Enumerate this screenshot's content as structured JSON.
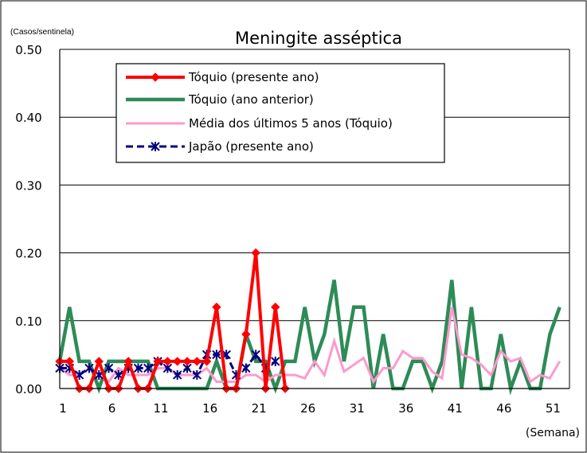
{
  "chart_data": {
    "type": "line",
    "title": "Meningite asséptica",
    "ylabel": "(Casos/sentinela)",
    "xlabel": "(Semana)",
    "ylim": [
      0,
      0.5
    ],
    "yticks": [
      "0.00",
      "0.10",
      "0.20",
      "0.30",
      "0.40",
      "0.50"
    ],
    "xlim": [
      1,
      53
    ],
    "xticks": [
      "1",
      "6",
      "11",
      "16",
      "21",
      "26",
      "31",
      "36",
      "41",
      "46",
      "51"
    ],
    "grid": true,
    "legend_position": "top-left",
    "series": [
      {
        "name": "Tóquio (presente ano)",
        "color": "#ff0000",
        "marker": "diamond",
        "x": [
          1,
          2,
          3,
          4,
          5,
          6,
          7,
          8,
          9,
          10,
          11,
          12,
          13,
          14,
          15,
          16,
          17,
          18,
          19,
          20,
          21,
          22,
          23,
          24
        ],
        "values": [
          0.04,
          0.04,
          0.0,
          0.0,
          0.04,
          0.0,
          0.0,
          0.04,
          0.0,
          0.0,
          0.04,
          0.04,
          0.04,
          0.04,
          0.04,
          0.04,
          0.12,
          0.0,
          0.0,
          0.08,
          0.2,
          0.0,
          0.12,
          0.0
        ]
      },
      {
        "name": "Tóquio (ano anterior)",
        "color": "#2e8b57",
        "marker": "none",
        "x": [
          1,
          2,
          3,
          4,
          5,
          6,
          7,
          8,
          9,
          10,
          11,
          12,
          13,
          14,
          15,
          16,
          17,
          18,
          19,
          20,
          21,
          22,
          23,
          24,
          25,
          26,
          27,
          28,
          29,
          30,
          31,
          32,
          33,
          34,
          35,
          36,
          37,
          38,
          39,
          40,
          41,
          42,
          43,
          44,
          45,
          46,
          47,
          48,
          49,
          50,
          51,
          52
        ],
        "values": [
          0.04,
          0.12,
          0.04,
          0.04,
          0.0,
          0.04,
          0.04,
          0.04,
          0.04,
          0.04,
          0.0,
          0.0,
          0.0,
          0.0,
          0.0,
          0.0,
          0.04,
          0.0,
          0.0,
          0.08,
          0.04,
          0.04,
          0.0,
          0.04,
          0.04,
          0.12,
          0.04,
          0.08,
          0.16,
          0.04,
          0.12,
          0.12,
          0.0,
          0.08,
          0.0,
          0.0,
          0.04,
          0.04,
          0.0,
          0.04,
          0.16,
          0.0,
          0.12,
          0.0,
          0.0,
          0.08,
          0.0,
          0.04,
          0.0,
          0.0,
          0.08,
          0.12
        ]
      },
      {
        "name": "Média dos últimos 5 anos (Tóquio)",
        "color": "#ff99cc",
        "marker": "none",
        "x": [
          1,
          2,
          3,
          4,
          5,
          6,
          7,
          8,
          9,
          10,
          11,
          12,
          13,
          14,
          15,
          16,
          17,
          18,
          19,
          20,
          21,
          22,
          23,
          24,
          25,
          26,
          27,
          28,
          29,
          30,
          31,
          32,
          33,
          34,
          35,
          36,
          37,
          38,
          39,
          40,
          41,
          42,
          43,
          44,
          45,
          46,
          47,
          48,
          49,
          50,
          51,
          52
        ],
        "values": [
          0.03,
          0.02,
          0.02,
          0.03,
          0.02,
          0.01,
          0.03,
          0.02,
          0.02,
          0.02,
          0.03,
          0.03,
          0.02,
          0.02,
          0.02,
          0.03,
          0.01,
          0.01,
          0.01,
          0.02,
          0.02,
          0.01,
          0.02,
          0.02,
          0.02,
          0.015,
          0.04,
          0.02,
          0.07,
          0.025,
          0.035,
          0.045,
          0.01,
          0.03,
          0.03,
          0.055,
          0.045,
          0.045,
          0.025,
          0.015,
          0.12,
          0.05,
          0.045,
          0.035,
          0.02,
          0.055,
          0.04,
          0.045,
          0.01,
          0.02,
          0.015,
          0.04
        ]
      },
      {
        "name": "Japão (presente ano)",
        "color": "#000080",
        "marker": "asterisk",
        "x": [
          1,
          2,
          3,
          4,
          5,
          6,
          7,
          8,
          9,
          10,
          11,
          12,
          13,
          14,
          15,
          16,
          17,
          18,
          19,
          20,
          21,
          22,
          23
        ],
        "values": [
          0.03,
          0.03,
          0.02,
          0.03,
          0.02,
          0.03,
          0.02,
          0.03,
          0.03,
          0.03,
          0.04,
          0.03,
          0.02,
          0.03,
          0.02,
          0.05,
          0.05,
          0.05,
          0.02,
          0.03,
          0.05,
          0.03,
          0.04
        ]
      }
    ]
  }
}
